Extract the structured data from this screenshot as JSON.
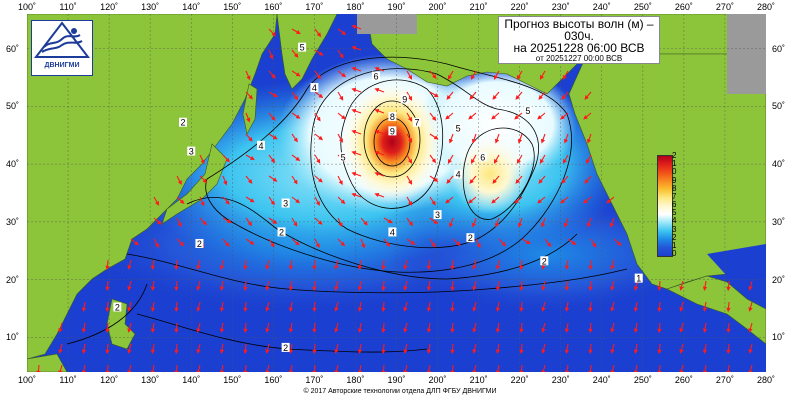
{
  "title": {
    "line1": "Прогноз высоты волн (м) –",
    "line2": "030ч.",
    "line3": "на 20251228 06:00 ВСВ",
    "line4": "от 20251227 00:00 ВСВ"
  },
  "logo": {
    "text": "ДВНИГМИ",
    "icon": "wave-logo-icon"
  },
  "copyright": "© 2017 Авторские технологии отдела ДЛП ФГБУ ДВНИГМИ",
  "axes": {
    "lon_labels": [
      "100˚",
      "110˚",
      "120˚",
      "130˚",
      "140˚",
      "150˚",
      "160˚",
      "170˚",
      "180˚",
      "190˚",
      "200˚",
      "210˚",
      "220˚",
      "230˚",
      "240˚",
      "250˚",
      "260˚",
      "270˚",
      "280˚"
    ],
    "lat_labels": [
      "60˚",
      "50˚",
      "40˚",
      "30˚",
      "20˚",
      "10˚"
    ],
    "lon_range": [
      100,
      280
    ],
    "lat_range": [
      4,
      66
    ]
  },
  "scale": {
    "labels": [
      "2",
      "1",
      "0",
      "9",
      "8",
      "7",
      "6",
      "5",
      "4",
      "3",
      "2",
      "1",
      "0"
    ],
    "colors": [
      "#b0001a",
      "#e0201a",
      "#f05018",
      "#f88a20",
      "#f8c030",
      "#fde880",
      "#fff8d0",
      "#ffffff",
      "#9ae6f8",
      "#3cc4f0",
      "#1e8ae6",
      "#2455d8",
      "#1b3fd0"
    ]
  },
  "colors": {
    "land": "#8cc43a",
    "ocean_low": "#1b3fd0",
    "arrow": "#ff1a1a",
    "contour": "#000000"
  },
  "contour_labels": [
    {
      "text": "6",
      "lon": 185,
      "lat": 55
    },
    {
      "text": "9",
      "lon": 192,
      "lat": 51
    },
    {
      "text": "9",
      "lon": 189,
      "lat": 45.5
    },
    {
      "text": "8",
      "lon": 189,
      "lat": 48
    },
    {
      "text": "7",
      "lon": 195,
      "lat": 47
    },
    {
      "text": "5",
      "lon": 177,
      "lat": 41
    },
    {
      "text": "5",
      "lon": 205,
      "lat": 46
    },
    {
      "text": "5",
      "lon": 222,
      "lat": 49
    },
    {
      "text": "6",
      "lon": 211,
      "lat": 41
    },
    {
      "text": "4",
      "lon": 170,
      "lat": 53
    },
    {
      "text": "4",
      "lon": 205,
      "lat": 38
    },
    {
      "text": "4",
      "lon": 189,
      "lat": 28
    },
    {
      "text": "4",
      "lon": 157,
      "lat": 43
    },
    {
      "text": "5",
      "lon": 167,
      "lat": 60
    },
    {
      "text": "3",
      "lon": 200,
      "lat": 31
    },
    {
      "text": "3",
      "lon": 163,
      "lat": 33
    },
    {
      "text": "2",
      "lon": 162,
      "lat": 28
    },
    {
      "text": "2",
      "lon": 142,
      "lat": 26
    },
    {
      "text": "2",
      "lon": 208,
      "lat": 27
    },
    {
      "text": "2",
      "lon": 226,
      "lat": 23
    },
    {
      "text": "2",
      "lon": 138,
      "lat": 47
    },
    {
      "text": "3",
      "lon": 140,
      "lat": 42
    },
    {
      "text": "1",
      "lon": 249,
      "lat": 20
    },
    {
      "text": "2",
      "lon": 163,
      "lat": 8
    },
    {
      "text": "2",
      "lon": 122,
      "lat": 15
    }
  ]
}
